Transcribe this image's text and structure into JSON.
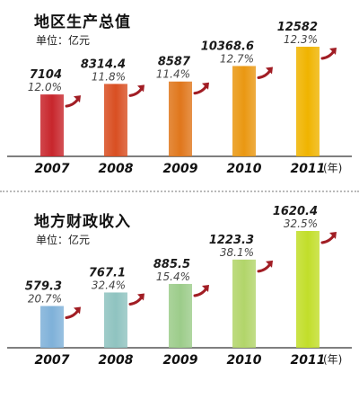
{
  "chart_data": [
    {
      "type": "bar",
      "title": "地区生产总值",
      "unit_label": "单位：亿元",
      "x_unit": "(年)",
      "categories": [
        "2007",
        "2008",
        "2009",
        "2010",
        "2011"
      ],
      "values": [
        7104,
        8314.4,
        8587,
        10368.6,
        12582
      ],
      "value_labels": [
        "7104",
        "8314.4",
        "8587",
        "10368.6",
        "12582"
      ],
      "growth_labels": [
        "12.0%",
        "11.8%",
        "11.4%",
        "12.7%",
        "12.3%"
      ],
      "colors": [
        "#c8262c",
        "#d94f22",
        "#e0771c",
        "#ea9812",
        "#f0b400"
      ],
      "arrow_color": "#a11d24"
    },
    {
      "type": "bar",
      "title": "地方财政收入",
      "unit_label": "单位：亿元",
      "x_unit": "(年)",
      "categories": [
        "2007",
        "2008",
        "2009",
        "2010",
        "2011"
      ],
      "values": [
        579.3,
        767.1,
        885.5,
        1223.3,
        1620.4
      ],
      "value_labels": [
        "579.3",
        "767.1",
        "885.5",
        "1223.3",
        "1620.4"
      ],
      "growth_labels": [
        "20.7%",
        "32.4%",
        "15.4%",
        "38.1%",
        "32.5%"
      ],
      "colors": [
        "#7fb1d9",
        "#8fc3c0",
        "#9ccc8a",
        "#b2d56a",
        "#c2de2a"
      ],
      "arrow_color": "#a11d24"
    }
  ]
}
